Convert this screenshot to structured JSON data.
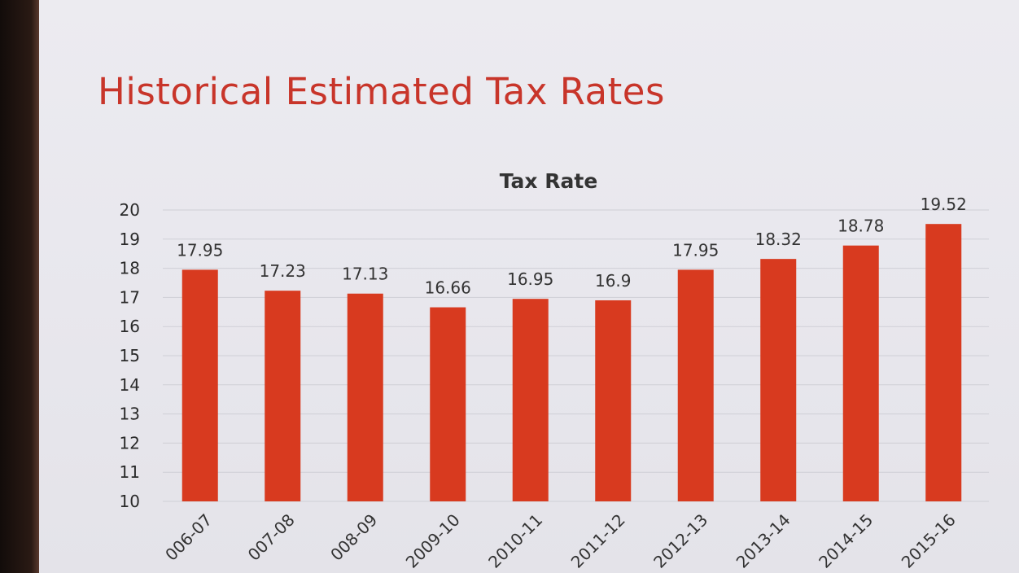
{
  "slide": {
    "title": "Historical Estimated Tax Rates"
  },
  "colors": {
    "bar": "#d83a1f",
    "title": "#c8352a"
  },
  "chart_data": {
    "type": "bar",
    "title": "Tax Rate",
    "categories": [
      "006-07",
      "007-08",
      "008-09",
      "2009-10",
      "2010-11",
      "2011-12",
      "2012-13",
      "2013-14",
      "2014-15",
      "2015-16"
    ],
    "values": [
      17.95,
      17.23,
      17.13,
      16.66,
      16.95,
      16.9,
      17.95,
      18.32,
      18.78,
      19.52
    ],
    "data_labels": [
      "17.95",
      "17.23",
      "17.13",
      "16.66",
      "16.95",
      "16.9",
      "17.95",
      "18.32",
      "18.78",
      "19.52"
    ],
    "ylim": [
      10,
      20
    ],
    "yticks": [
      "10",
      "11",
      "12",
      "13",
      "14",
      "15",
      "16",
      "17",
      "18",
      "19",
      "20"
    ],
    "xlabel": "",
    "ylabel": "",
    "grid": true,
    "legend": "none"
  }
}
